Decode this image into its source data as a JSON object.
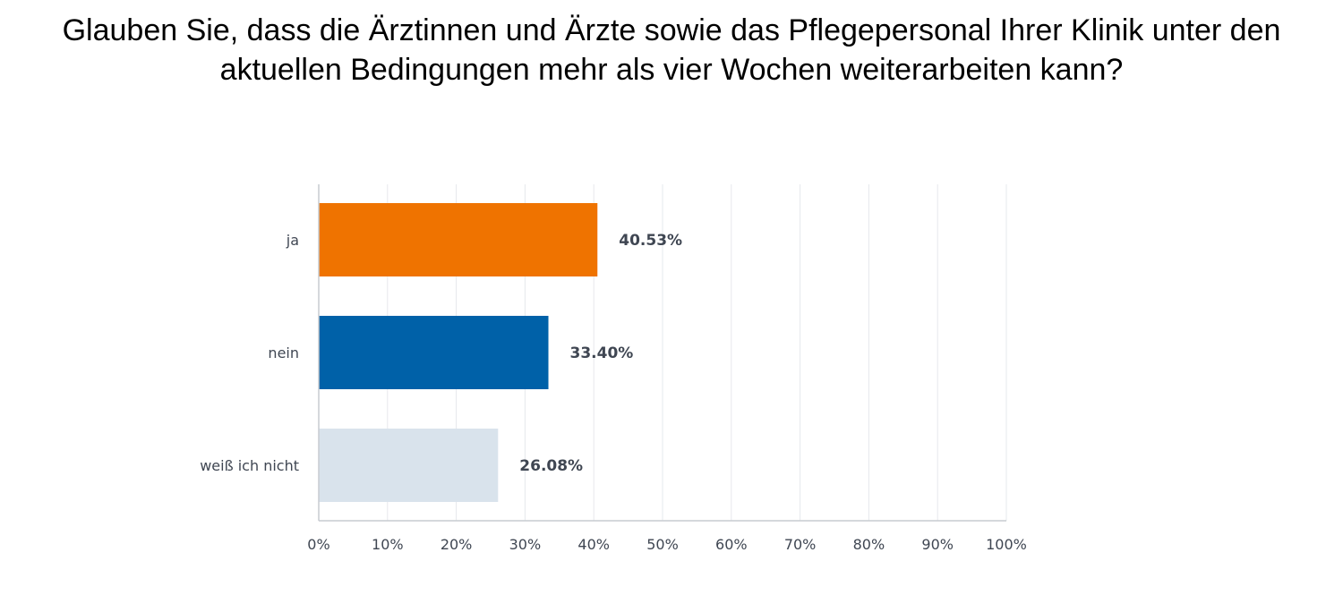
{
  "chart_data": {
    "type": "bar",
    "orientation": "horizontal",
    "title": "Glauben Sie, dass die Ärztinnen und Ärzte sowie das Pflegepersonal Ihrer Klinik unter den aktuellen Bedingungen mehr als vier Wochen weiterarbeiten kann?",
    "categories": [
      "ja",
      "nein",
      "weiß ich nicht"
    ],
    "values": [
      40.53,
      33.4,
      26.08
    ],
    "value_labels": [
      "40.53%",
      "33.40%",
      "26.08%"
    ],
    "colors": [
      "#ef7300",
      "#0061a8",
      "#d9e3ec"
    ],
    "xlim": [
      0,
      100
    ],
    "ticks": [
      0,
      10,
      20,
      30,
      40,
      50,
      60,
      70,
      80,
      90,
      100
    ],
    "tick_labels": [
      "0%",
      "10%",
      "20%",
      "30%",
      "40%",
      "50%",
      "60%",
      "70%",
      "80%",
      "90%",
      "100%"
    ],
    "grid": true,
    "legend": "none"
  }
}
